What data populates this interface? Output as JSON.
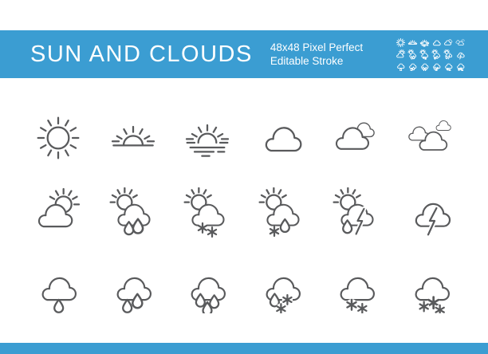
{
  "header": {
    "title": "SUN AND CLOUDS",
    "subtitle_line1": "48x48 Pixel Perfect",
    "subtitle_line2": "Editable Stroke"
  },
  "colors": {
    "band_blue": "#3b9dd2",
    "icon_stroke": "#595a5c",
    "background": "#ffffff",
    "header_text": "#ffffff"
  },
  "icons": [
    {
      "id": "sun",
      "label": "Sun"
    },
    {
      "id": "sunrise",
      "label": "Sunrise"
    },
    {
      "id": "sun-water",
      "label": "Sun over water"
    },
    {
      "id": "cloud",
      "label": "Cloud"
    },
    {
      "id": "clouds",
      "label": "Two clouds"
    },
    {
      "id": "cloudy",
      "label": "Cloudy sky"
    },
    {
      "id": "sun-cloud",
      "label": "Sun behind cloud"
    },
    {
      "id": "sun-rain",
      "label": "Sun with rain cloud"
    },
    {
      "id": "sun-snow",
      "label": "Sun with snow cloud"
    },
    {
      "id": "sun-sleet",
      "label": "Sun with snow and rain"
    },
    {
      "id": "sun-storm",
      "label": "Sun with rain and lightning"
    },
    {
      "id": "lightning",
      "label": "Cloud with lightning"
    },
    {
      "id": "drizzle",
      "label": "Cloud with one raindrop"
    },
    {
      "id": "rain",
      "label": "Cloud with two raindrops"
    },
    {
      "id": "heavy-rain",
      "label": "Cloud with three raindrops"
    },
    {
      "id": "rain-snow",
      "label": "Cloud with rain and snow"
    },
    {
      "id": "snow",
      "label": "Cloud with two snowflakes"
    },
    {
      "id": "heavy-snow",
      "label": "Cloud with three snowflakes"
    }
  ]
}
